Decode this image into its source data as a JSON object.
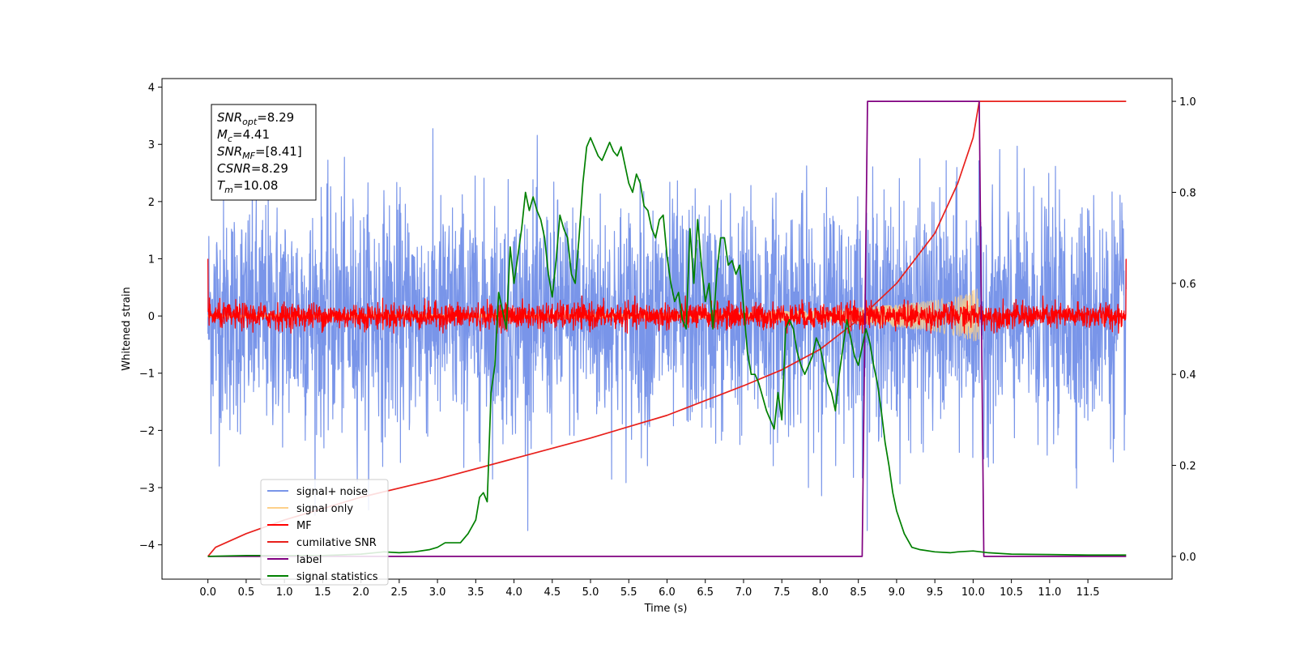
{
  "chart_data": {
    "type": "line",
    "title": "",
    "xlabel": "Time (s)",
    "ylabel": "Whitened strain",
    "xlim": [
      -0.6,
      12.6
    ],
    "ylim": [
      -4.6,
      4.15
    ],
    "y2lim": [
      -0.05,
      1.05
    ],
    "x_ticks": [
      "0.0",
      "0.5",
      "1.0",
      "1.5",
      "2.0",
      "2.5",
      "3.0",
      "3.5",
      "4.0",
      "4.5",
      "5.0",
      "5.5",
      "6.0",
      "6.5",
      "7.0",
      "7.5",
      "8.0",
      "8.5",
      "9.0",
      "9.5",
      "10.0",
      "10.5",
      "11.0",
      "11.5"
    ],
    "y_ticks": [
      "4",
      "3",
      "2",
      "1",
      "0",
      "−1",
      "−2",
      "−3",
      "−4"
    ],
    "y2_ticks": [
      "1.0",
      "0.8",
      "0.6",
      "0.4",
      "0.2",
      "0.0"
    ],
    "grid": false,
    "legend_position": "lower-left",
    "annotation": {
      "lines": [
        {
          "base": "SNR",
          "sub": "opt",
          "value": "=8.29"
        },
        {
          "base": "M",
          "sub": "c",
          "value": "=4.41"
        },
        {
          "base": "SNR",
          "sub": "MF",
          "value": "=[8.41]"
        },
        {
          "base": "CSNR",
          "sub": "",
          "value": "=8.29"
        },
        {
          "base": "T",
          "sub": "m",
          "value": "=10.08"
        }
      ]
    },
    "series": [
      {
        "name": "signal+ noise",
        "color": "#7995e9",
        "axis": "left",
        "style": "noise",
        "x_range": [
          0.0,
          12.0
        ],
        "amplitude_range": [
          -3.75,
          3.75
        ],
        "typical_range": [
          -2.0,
          2.0
        ]
      },
      {
        "name": "signal only",
        "color": "#fdd08a",
        "axis": "left",
        "style": "chirp",
        "envelope": [
          [
            0.0,
            0.02
          ],
          [
            2.0,
            0.03
          ],
          [
            4.0,
            0.04
          ],
          [
            6.0,
            0.05
          ],
          [
            7.0,
            0.07
          ],
          [
            8.0,
            0.1
          ],
          [
            8.5,
            0.15
          ],
          [
            9.0,
            0.2
          ],
          [
            9.5,
            0.28
          ],
          [
            9.8,
            0.35
          ],
          [
            10.0,
            0.45
          ],
          [
            10.08,
            0.55
          ]
        ]
      },
      {
        "name": "MF",
        "color": "#ff0000",
        "axis": "left",
        "style": "noise",
        "x_range": [
          0.0,
          12.0
        ],
        "typical_range": [
          -0.22,
          0.22
        ],
        "amplitude_range": [
          -0.3,
          0.35
        ],
        "edge_values": [
          1.0,
          1.0
        ]
      },
      {
        "name": "cumilative SNR",
        "color": "#e8201c",
        "axis": "right",
        "x": [
          0.0,
          0.1,
          0.5,
          1.0,
          2.0,
          3.0,
          4.0,
          5.0,
          6.0,
          7.0,
          7.5,
          8.0,
          8.5,
          9.0,
          9.5,
          9.8,
          10.0,
          10.08,
          10.1,
          12.0
        ],
        "y": [
          0.0,
          0.02,
          0.05,
          0.08,
          0.13,
          0.17,
          0.215,
          0.26,
          0.31,
          0.375,
          0.41,
          0.455,
          0.52,
          0.6,
          0.71,
          0.82,
          0.92,
          1.0,
          1.0,
          1.0
        ]
      },
      {
        "name": "label",
        "color": "#800080",
        "axis": "right",
        "x": [
          0.0,
          8.55,
          8.62,
          10.08,
          10.14,
          12.0
        ],
        "y": [
          0.0,
          0.0,
          1.0,
          1.0,
          0.0,
          0.0
        ]
      },
      {
        "name": "signal statistics",
        "color": "#008000",
        "axis": "right",
        "x": [
          0.0,
          0.5,
          1.0,
          1.5,
          2.0,
          2.3,
          2.5,
          2.7,
          2.9,
          3.0,
          3.1,
          3.3,
          3.4,
          3.5,
          3.55,
          3.6,
          3.65,
          3.7,
          3.75,
          3.8,
          3.85,
          3.9,
          3.95,
          4.0,
          4.05,
          4.1,
          4.15,
          4.2,
          4.25,
          4.3,
          4.35,
          4.4,
          4.45,
          4.5,
          4.55,
          4.6,
          4.65,
          4.7,
          4.75,
          4.8,
          4.85,
          4.9,
          4.95,
          5.0,
          5.05,
          5.1,
          5.15,
          5.2,
          5.25,
          5.3,
          5.35,
          5.4,
          5.45,
          5.5,
          5.55,
          5.6,
          5.65,
          5.7,
          5.75,
          5.8,
          5.85,
          5.9,
          5.95,
          6.0,
          6.05,
          6.1,
          6.15,
          6.2,
          6.25,
          6.3,
          6.35,
          6.4,
          6.45,
          6.5,
          6.55,
          6.6,
          6.65,
          6.7,
          6.75,
          6.8,
          6.85,
          6.9,
          6.95,
          7.0,
          7.05,
          7.1,
          7.15,
          7.2,
          7.25,
          7.3,
          7.35,
          7.4,
          7.45,
          7.5,
          7.55,
          7.6,
          7.65,
          7.7,
          7.75,
          7.8,
          7.85,
          7.9,
          7.95,
          8.0,
          8.05,
          8.1,
          8.15,
          8.2,
          8.25,
          8.3,
          8.35,
          8.4,
          8.45,
          8.5,
          8.55,
          8.6,
          8.65,
          8.7,
          8.75,
          8.8,
          8.85,
          8.9,
          8.95,
          9.0,
          9.1,
          9.2,
          9.3,
          9.5,
          9.7,
          9.8,
          10.0,
          10.2,
          10.5,
          11.0,
          11.5,
          12.0
        ],
        "y": [
          0.0,
          0.002,
          0.002,
          0.002,
          0.005,
          0.01,
          0.008,
          0.01,
          0.015,
          0.02,
          0.03,
          0.03,
          0.05,
          0.08,
          0.13,
          0.14,
          0.12,
          0.36,
          0.42,
          0.58,
          0.54,
          0.5,
          0.68,
          0.6,
          0.66,
          0.72,
          0.8,
          0.76,
          0.79,
          0.76,
          0.74,
          0.7,
          0.62,
          0.57,
          0.65,
          0.75,
          0.72,
          0.7,
          0.62,
          0.6,
          0.7,
          0.82,
          0.9,
          0.92,
          0.9,
          0.88,
          0.87,
          0.89,
          0.91,
          0.89,
          0.88,
          0.9,
          0.86,
          0.82,
          0.8,
          0.84,
          0.82,
          0.77,
          0.76,
          0.72,
          0.7,
          0.74,
          0.75,
          0.66,
          0.6,
          0.56,
          0.58,
          0.52,
          0.5,
          0.72,
          0.6,
          0.74,
          0.64,
          0.56,
          0.6,
          0.5,
          0.62,
          0.7,
          0.7,
          0.64,
          0.65,
          0.62,
          0.64,
          0.55,
          0.45,
          0.4,
          0.4,
          0.38,
          0.35,
          0.32,
          0.3,
          0.28,
          0.36,
          0.3,
          0.5,
          0.52,
          0.5,
          0.45,
          0.42,
          0.4,
          0.42,
          0.44,
          0.48,
          0.46,
          0.42,
          0.38,
          0.36,
          0.32,
          0.4,
          0.46,
          0.52,
          0.48,
          0.44,
          0.42,
          0.46,
          0.5,
          0.47,
          0.42,
          0.38,
          0.32,
          0.25,
          0.2,
          0.14,
          0.1,
          0.05,
          0.02,
          0.015,
          0.01,
          0.008,
          0.01,
          0.012,
          0.008,
          0.005,
          0.004,
          0.003,
          0.003
        ]
      }
    ]
  }
}
